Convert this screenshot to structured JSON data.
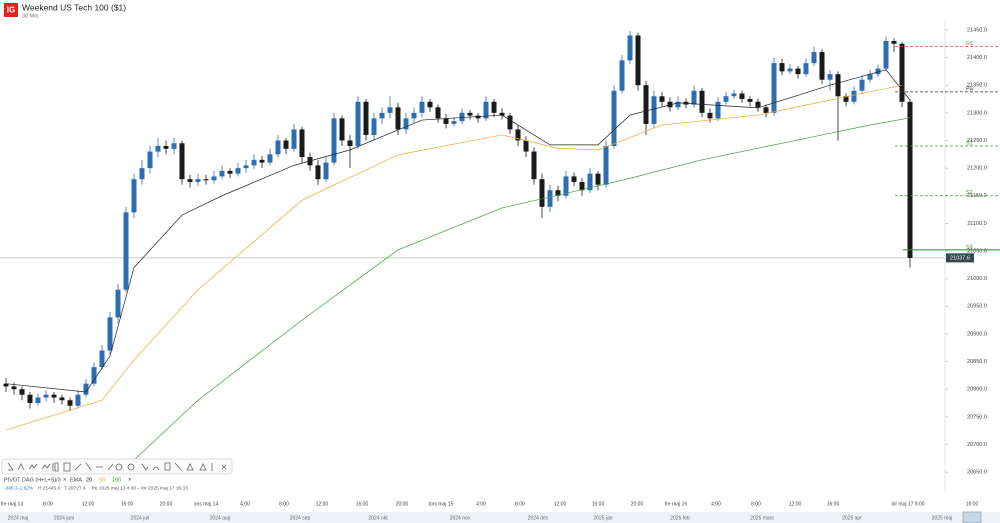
{
  "chart_data": {
    "type": "candlestick",
    "title": "Weekend US Tech 100 ($1)",
    "subtitle": "30 Min",
    "logo": "IG",
    "up_color": "#2d6db3",
    "down_color": "#1a1a1a",
    "ylim": [
      20614,
      21468
    ],
    "yticks": [
      {
        "value": 21450,
        "label": "21450.0"
      },
      {
        "value": 21400,
        "label": "21400.0"
      },
      {
        "value": 21350,
        "label": "21350.0"
      },
      {
        "value": 21300,
        "label": "21300.0"
      },
      {
        "value": 21250,
        "label": "21250.0"
      },
      {
        "value": 21200,
        "label": "21200.0"
      },
      {
        "value": 21150,
        "label": "21150.0"
      },
      {
        "value": 21100,
        "label": "21100.0"
      },
      {
        "value": 21050,
        "label": "21050.0"
      },
      {
        "value": 21000,
        "label": "21000.0"
      },
      {
        "value": 20950,
        "label": "20950.0"
      },
      {
        "value": 20900,
        "label": "20900.0"
      },
      {
        "value": 20850,
        "label": "20850.0"
      },
      {
        "value": 20800,
        "label": "20800.0"
      },
      {
        "value": 20750,
        "label": "20750.0"
      },
      {
        "value": 20700,
        "label": "20700.0"
      },
      {
        "value": 20650,
        "label": "20650.0"
      }
    ],
    "candles": [
      [
        20810,
        20820,
        20795,
        20805
      ],
      [
        20805,
        20812,
        20790,
        20800
      ],
      [
        20800,
        20805,
        20780,
        20790
      ],
      [
        20790,
        20795,
        20765,
        20775
      ],
      [
        20775,
        20792,
        20770,
        20785
      ],
      [
        20785,
        20798,
        20778,
        20790
      ],
      [
        20790,
        20795,
        20775,
        20785
      ],
      [
        20785,
        20790,
        20772,
        20780
      ],
      [
        20780,
        20785,
        20760,
        20770
      ],
      [
        20770,
        20798,
        20765,
        20790
      ],
      [
        20790,
        20818,
        20785,
        20810
      ],
      [
        20810,
        20848,
        20805,
        20840
      ],
      [
        20840,
        20880,
        20835,
        20870
      ],
      [
        20870,
        20940,
        20862,
        20930
      ],
      [
        20930,
        20990,
        20920,
        20980
      ],
      [
        20980,
        21130,
        20975,
        21120
      ],
      [
        21120,
        21190,
        21110,
        21180
      ],
      [
        21180,
        21215,
        21170,
        21200
      ],
      [
        21200,
        21240,
        21190,
        21230
      ],
      [
        21230,
        21255,
        21220,
        21240
      ],
      [
        21240,
        21250,
        21225,
        21235
      ],
      [
        21235,
        21255,
        21225,
        21245
      ],
      [
        21245,
        21250,
        21170,
        21180
      ],
      [
        21180,
        21188,
        21165,
        21175
      ],
      [
        21175,
        21190,
        21168,
        21180
      ],
      [
        21180,
        21188,
        21170,
        21178
      ],
      [
        21178,
        21195,
        21172,
        21185
      ],
      [
        21185,
        21205,
        21180,
        21195
      ],
      [
        21195,
        21200,
        21182,
        21190
      ],
      [
        21190,
        21210,
        21185,
        21200
      ],
      [
        21200,
        21215,
        21192,
        21205
      ],
      [
        21205,
        21225,
        21198,
        21215
      ],
      [
        21215,
        21222,
        21200,
        21210
      ],
      [
        21210,
        21235,
        21205,
        21225
      ],
      [
        21225,
        21260,
        21220,
        21250
      ],
      [
        21250,
        21255,
        21225,
        21235
      ],
      [
        21235,
        21280,
        21230,
        21270
      ],
      [
        21270,
        21275,
        21210,
        21220
      ],
      [
        21220,
        21228,
        21195,
        21205
      ],
      [
        21205,
        21215,
        21170,
        21180
      ],
      [
        21180,
        21220,
        21175,
        21210
      ],
      [
        21210,
        21300,
        21205,
        21290
      ],
      [
        21290,
        21295,
        21240,
        21250
      ],
      [
        21250,
        21260,
        21200,
        21240
      ],
      [
        21240,
        21330,
        21235,
        21320
      ],
      [
        21320,
        21325,
        21250,
        21260
      ],
      [
        21260,
        21300,
        21250,
        21290
      ],
      [
        21290,
        21310,
        21280,
        21300
      ],
      [
        21300,
        21330,
        21290,
        21310
      ],
      [
        21310,
        21318,
        21260,
        21270
      ],
      [
        21270,
        21300,
        21262,
        21290
      ],
      [
        21290,
        21310,
        21282,
        21300
      ],
      [
        21300,
        21330,
        21292,
        21320
      ],
      [
        21320,
        21325,
        21302,
        21310
      ],
      [
        21310,
        21315,
        21282,
        21290
      ],
      [
        21290,
        21298,
        21272,
        21280
      ],
      [
        21280,
        21292,
        21275,
        21285
      ],
      [
        21285,
        21308,
        21280,
        21300
      ],
      [
        21300,
        21305,
        21288,
        21295
      ],
      [
        21295,
        21300,
        21282,
        21290
      ],
      [
        21290,
        21330,
        21285,
        21320
      ],
      [
        21320,
        21325,
        21292,
        21300
      ],
      [
        21300,
        21308,
        21288,
        21295
      ],
      [
        21295,
        21300,
        21262,
        21270
      ],
      [
        21270,
        21278,
        21240,
        21250
      ],
      [
        21250,
        21258,
        21220,
        21230
      ],
      [
        21230,
        21238,
        21170,
        21180
      ],
      [
        21180,
        21190,
        21110,
        21130
      ],
      [
        21130,
        21170,
        21120,
        21160
      ],
      [
        21160,
        21168,
        21140,
        21150
      ],
      [
        21150,
        21195,
        21145,
        21185
      ],
      [
        21185,
        21192,
        21168,
        21175
      ],
      [
        21175,
        21182,
        21150,
        21160
      ],
      [
        21160,
        21200,
        21155,
        21190
      ],
      [
        21190,
        21195,
        21160,
        21170
      ],
      [
        21170,
        21250,
        21165,
        21240
      ],
      [
        21240,
        21350,
        21235,
        21340
      ],
      [
        21340,
        21405,
        21335,
        21395
      ],
      [
        21395,
        21448,
        21388,
        21440
      ],
      [
        21440,
        21445,
        21340,
        21350
      ],
      [
        21350,
        21358,
        21260,
        21280
      ],
      [
        21280,
        21340,
        21272,
        21330
      ],
      [
        21330,
        21338,
        21312,
        21320
      ],
      [
        21320,
        21328,
        21302,
        21310
      ],
      [
        21310,
        21330,
        21305,
        21320
      ],
      [
        21320,
        21326,
        21308,
        21315
      ],
      [
        21315,
        21350,
        21310,
        21340
      ],
      [
        21340,
        21345,
        21292,
        21300
      ],
      [
        21300,
        21308,
        21282,
        21290
      ],
      [
        21290,
        21328,
        21285,
        21320
      ],
      [
        21320,
        21338,
        21315,
        21330
      ],
      [
        21330,
        21342,
        21325,
        21335
      ],
      [
        21335,
        21340,
        21318,
        21325
      ],
      [
        21325,
        21330,
        21312,
        21320
      ],
      [
        21320,
        21326,
        21302,
        21310
      ],
      [
        21310,
        21315,
        21292,
        21300
      ],
      [
        21300,
        21400,
        21295,
        21390
      ],
      [
        21390,
        21398,
        21368,
        21375
      ],
      [
        21375,
        21388,
        21370,
        21380
      ],
      [
        21380,
        21385,
        21362,
        21370
      ],
      [
        21370,
        21398,
        21365,
        21390
      ],
      [
        21390,
        21420,
        21385,
        21410
      ],
      [
        21410,
        21415,
        21352,
        21360
      ],
      [
        21360,
        21378,
        21340,
        21370
      ],
      [
        21370,
        21375,
        21250,
        21330
      ],
      [
        21330,
        21335,
        21312,
        21320
      ],
      [
        21320,
        21348,
        21315,
        21340
      ],
      [
        21340,
        21368,
        21335,
        21360
      ],
      [
        21360,
        21378,
        21355,
        21370
      ],
      [
        21370,
        21388,
        21365,
        21380
      ],
      [
        21380,
        21438,
        21375,
        21430
      ],
      [
        21430,
        21435,
        21410,
        21425
      ],
      [
        21425,
        21428,
        21310,
        21320
      ],
      [
        21320,
        21325,
        21020,
        21037.6
      ]
    ],
    "ema_label": "EMA",
    "series": [
      {
        "name": "20",
        "color": "#222222",
        "x": [
          0,
          10,
          13,
          16,
          22,
          27,
          36,
          43,
          52,
          62,
          68,
          74,
          78,
          84,
          94,
          103,
          110,
          113
        ],
        "values": [
          20810,
          20795,
          20860,
          21020,
          21115,
          21150,
          21205,
          21233,
          21287,
          21296,
          21242,
          21242,
          21296,
          21318,
          21309,
          21350,
          21378,
          21323
        ]
      },
      {
        "name": "50",
        "color": "#f0a830",
        "x": [
          0,
          12,
          16,
          24,
          37,
          49,
          62,
          69,
          74,
          82,
          94,
          103,
          112
        ],
        "values": [
          20726,
          20780,
          20853,
          20980,
          21142,
          21224,
          21260,
          21236,
          21233,
          21278,
          21296,
          21323,
          21350
        ]
      },
      {
        "name": "100",
        "color": "#3a9a3a",
        "x": [
          16,
          24,
          37,
          49,
          62,
          69,
          77,
          87,
          99,
          108,
          113
        ],
        "values": [
          20672,
          20780,
          20925,
          21052,
          21128,
          21151,
          21178,
          21215,
          21251,
          21278,
          21291
        ]
      }
    ],
    "pivot_label": "PIVOT DAG (H+L+S)/3",
    "pivots": [
      {
        "name": "R1",
        "value": 21420,
        "color": "#e05050"
      },
      {
        "name": "Piv",
        "value": 21338,
        "color": "#333333"
      },
      {
        "name": "S1",
        "value": 21240,
        "color": "#3a9a3a"
      },
      {
        "name": "S2",
        "value": 21150,
        "color": "#3a9a3a"
      },
      {
        "name": "S3",
        "value": 21052,
        "color": "#2a8a2a"
      }
    ],
    "last": 21037.6,
    "info": [
      "-345.3",
      "-1.62%",
      "H 21445.8",
      "T 20727.4",
      "fre 2025 maj 13 4:30 – lör 2025 maj 17 16:33"
    ],
    "time_labels": [
      "fre maj 13",
      "8:00",
      "12:00",
      "16:00",
      "20:00",
      "ons maj 14",
      "4:00",
      "8:00",
      "12:00",
      "16:00",
      "20:00",
      "tors maj 15",
      "4:00",
      "8:00",
      "12:00",
      "16:00",
      "20:00",
      "fre maj 16",
      "4:00",
      "8:00",
      "12:00",
      "16:00",
      "lör maj 17 9:00",
      "16:00"
    ],
    "nav_labels": [
      "2024 maj",
      "2024 juni",
      "2024 juli",
      "2024 aug",
      "2024 sep",
      "2024 okt",
      "2024 nov",
      "2024 dec",
      "2025 jan",
      "2025 feb",
      "2025 mars",
      "2025 apr",
      "2025 maj"
    ]
  }
}
